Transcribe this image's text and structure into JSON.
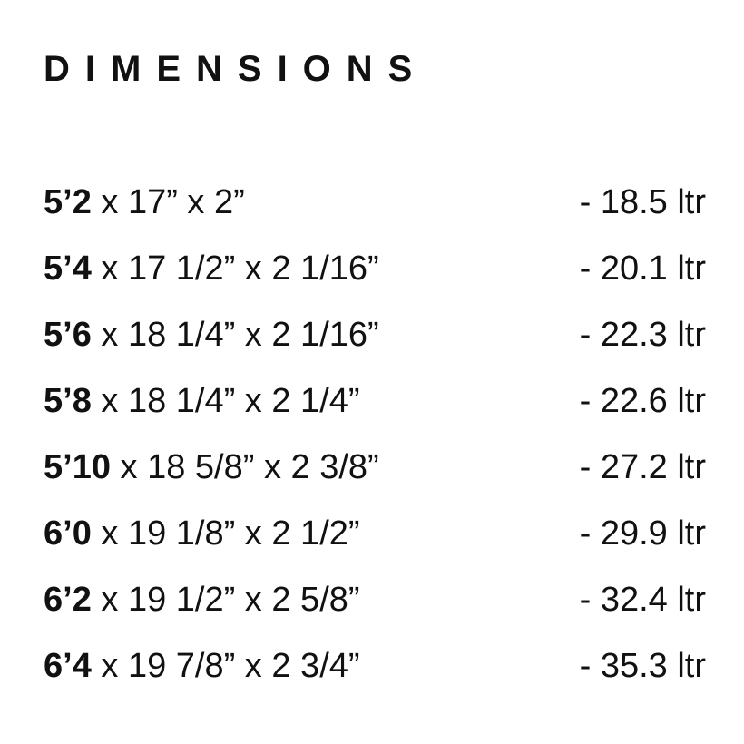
{
  "title": "DIMENSIONS",
  "rows": [
    {
      "length": "5’2",
      "dims": " x 17” x 2”",
      "volume": "- 18.5 ltr"
    },
    {
      "length": "5’4",
      "dims": " x 17 1/2” x 2 1/16”",
      "volume": "- 20.1 ltr"
    },
    {
      "length": "5’6",
      "dims": " x 18 1/4” x 2 1/16”",
      "volume": "- 22.3 ltr"
    },
    {
      "length": "5’8",
      "dims": " x 18 1/4” x 2 1/4”",
      "volume": "- 22.6 ltr"
    },
    {
      "length": "5’10",
      "dims": " x 18 5/8” x 2 3/8”",
      "volume": "- 27.2 ltr"
    },
    {
      "length": "6’0",
      "dims": " x 19 1/8” x 2 1/2”",
      "volume": "- 29.9 ltr"
    },
    {
      "length": "6’2",
      "dims": " x 19 1/2” x 2 5/8”",
      "volume": "- 32.4 ltr"
    },
    {
      "length": "6’4",
      "dims": " x 19 7/8” x 2 3/4”",
      "volume": "- 35.3 ltr"
    }
  ]
}
